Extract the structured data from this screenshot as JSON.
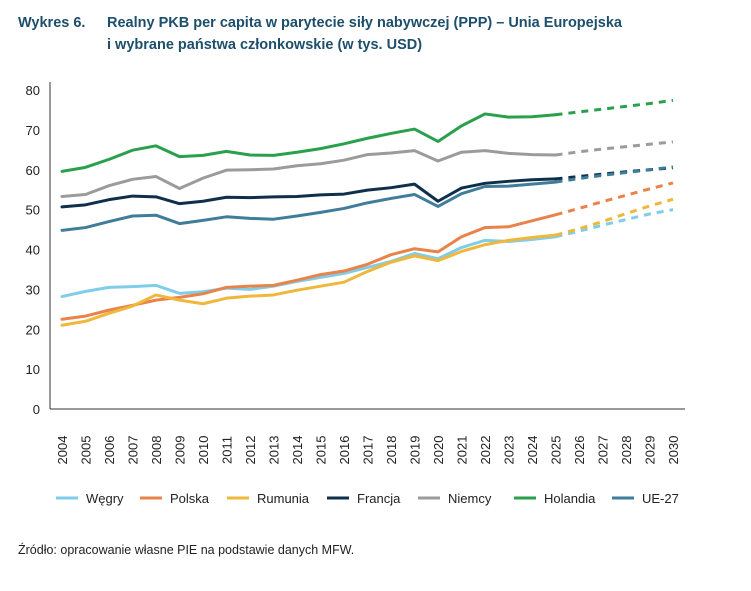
{
  "title": {
    "number": "Wykres 6.",
    "line1": "Realny PKB per capita w parytecie siły nabywczej (PPP) – Unia Europejska",
    "line2": "i wybrane państwa członkowskie (w tys. USD)"
  },
  "source": "Źródło: opracowanie własne PIE na podstawie danych MFW.",
  "chart_data": {
    "type": "line",
    "x": [
      "2004",
      "2005",
      "2006",
      "2007",
      "2008",
      "2009",
      "2010",
      "2011",
      "2012",
      "2013",
      "2014",
      "2015",
      "2016",
      "2017",
      "2018",
      "2019",
      "2020",
      "2021",
      "2022",
      "2023",
      "2024",
      "2025",
      "2026",
      "2027",
      "2028",
      "2029",
      "2030"
    ],
    "ylim": [
      0,
      80
    ],
    "yticks": [
      0,
      10,
      20,
      30,
      40,
      50,
      60,
      70,
      80
    ],
    "forecast_from": "2025",
    "forecast_style": "dashed",
    "grid": false,
    "legend_position": "bottom",
    "series": [
      {
        "name": "Węgry",
        "color": "#7fcde8",
        "values": [
          28.2,
          29.5,
          30.5,
          30.7,
          31.0,
          29.0,
          29.4,
          30.3,
          30.0,
          30.8,
          32.0,
          33.0,
          34.0,
          35.5,
          37.0,
          39.0,
          37.7,
          40.5,
          42.3,
          42.0,
          42.5,
          43.2,
          44.6,
          46.1,
          47.5,
          48.9,
          50.0
        ]
      },
      {
        "name": "Polska",
        "color": "#e8834a",
        "values": [
          22.5,
          23.3,
          24.8,
          26.0,
          27.3,
          28.0,
          28.9,
          30.5,
          30.8,
          31.0,
          32.3,
          33.7,
          34.6,
          36.3,
          38.7,
          40.2,
          39.4,
          43.2,
          45.5,
          45.7,
          47.2,
          48.7,
          50.3,
          52.0,
          53.6,
          55.2,
          56.7
        ]
      },
      {
        "name": "Rumunia",
        "color": "#efb73b",
        "values": [
          21.0,
          22.0,
          24.0,
          25.8,
          28.6,
          27.3,
          26.4,
          27.8,
          28.3,
          28.6,
          29.8,
          30.8,
          31.8,
          34.5,
          36.8,
          38.4,
          37.2,
          39.5,
          41.2,
          42.3,
          43.0,
          43.6,
          45.2,
          47.0,
          49.0,
          50.9,
          52.6
        ]
      },
      {
        "name": "Francja",
        "color": "#0f2f4a",
        "values": [
          50.7,
          51.2,
          52.5,
          53.4,
          53.2,
          51.5,
          52.1,
          53.1,
          53.0,
          53.2,
          53.3,
          53.7,
          53.9,
          54.9,
          55.5,
          56.4,
          52.1,
          55.4,
          56.6,
          57.1,
          57.5,
          57.7,
          58.3,
          58.9,
          59.5,
          60.0,
          60.5
        ]
      },
      {
        "name": "Niemcy",
        "color": "#9b9b9b",
        "values": [
          53.3,
          53.8,
          56.0,
          57.6,
          58.3,
          55.3,
          57.9,
          59.9,
          60.0,
          60.2,
          61.0,
          61.5,
          62.4,
          63.8,
          64.2,
          64.8,
          62.2,
          64.4,
          64.8,
          64.1,
          63.8,
          63.7,
          64.5,
          65.2,
          65.8,
          66.4,
          67.0
        ]
      },
      {
        "name": "Holandia",
        "color": "#2aa04c",
        "values": [
          59.6,
          60.6,
          62.6,
          64.9,
          66.0,
          63.3,
          63.6,
          64.6,
          63.7,
          63.6,
          64.4,
          65.3,
          66.5,
          67.9,
          69.1,
          70.2,
          67.1,
          71.0,
          74.0,
          73.2,
          73.3,
          73.8,
          74.5,
          75.2,
          75.9,
          76.6,
          77.4
        ]
      },
      {
        "name": "UE-27",
        "color": "#3f7d9b",
        "values": [
          44.8,
          45.5,
          47.0,
          48.4,
          48.6,
          46.5,
          47.3,
          48.2,
          47.8,
          47.6,
          48.4,
          49.3,
          50.3,
          51.7,
          52.8,
          53.8,
          50.8,
          54.0,
          55.8,
          55.9,
          56.4,
          56.9,
          57.8,
          58.6,
          59.3,
          60.0,
          60.7
        ]
      }
    ]
  }
}
